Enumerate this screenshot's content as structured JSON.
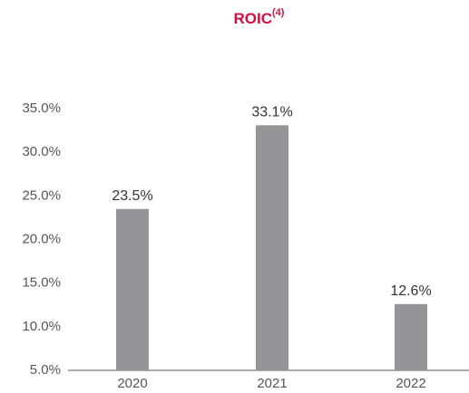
{
  "chart_data": {
    "type": "bar",
    "title": "ROIC",
    "title_superscript": "(4)",
    "categories": [
      "2020",
      "2021",
      "2022"
    ],
    "values": [
      23.5,
      33.1,
      12.6
    ],
    "value_labels": [
      "23.5%",
      "33.1%",
      "12.6%"
    ],
    "color": "#939598",
    "ylim": [
      5,
      35
    ],
    "yticks": [
      {
        "value": 5,
        "label": "5.0%"
      },
      {
        "value": 10,
        "label": "10.0%"
      },
      {
        "value": 15,
        "label": "15.0%"
      },
      {
        "value": 20,
        "label": "20.0%"
      },
      {
        "value": 25,
        "label": "25.0%"
      },
      {
        "value": 30,
        "label": "30.0%"
      },
      {
        "value": 35,
        "label": "35.0%"
      }
    ],
    "grid": false
  }
}
